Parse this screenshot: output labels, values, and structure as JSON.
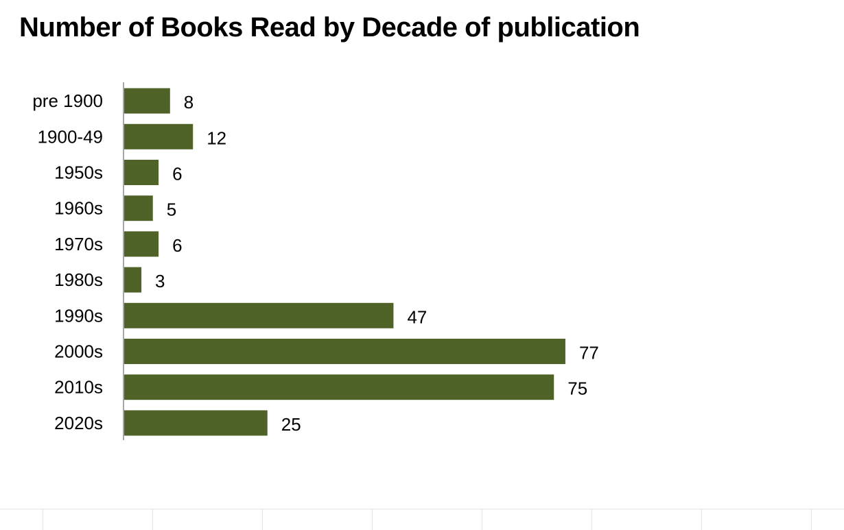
{
  "chart_data": {
    "type": "bar",
    "orientation": "horizontal",
    "title": "Number of Books Read by Decade of publication",
    "categories": [
      "pre 1900",
      "1900-49",
      "1950s",
      "1960s",
      "1970s",
      "1980s",
      "1990s",
      "2000s",
      "2010s",
      "2020s"
    ],
    "values": [
      8,
      12,
      6,
      5,
      6,
      3,
      47,
      77,
      75,
      25
    ],
    "xlabel": "",
    "ylabel": "",
    "xlim": [
      0,
      80
    ],
    "grid": false,
    "legend": "none",
    "data_labels": true,
    "bar_color": "#4f6228",
    "axis_color": "#a6a6a6"
  }
}
